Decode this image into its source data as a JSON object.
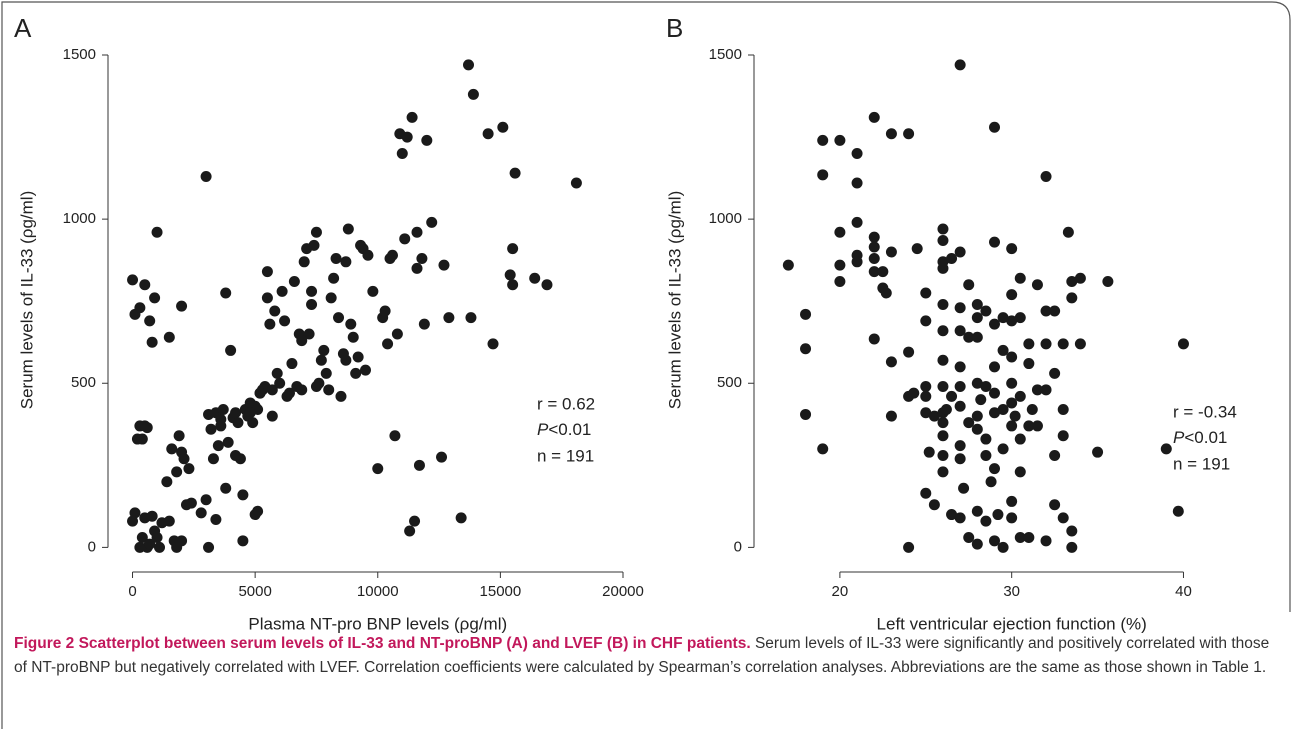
{
  "chart_data": [
    {
      "type": "scatter",
      "panel": "A",
      "xlabel": "Plasma NT-pro BNP levels (ρg/ml)",
      "ylabel": "Serum levels of IL-33 (ρg/ml)",
      "xlim": [
        -1000,
        20000
      ],
      "xticks": [
        0,
        5000,
        10000,
        15000,
        20000
      ],
      "ylim": [
        -75,
        1500
      ],
      "yticks": [
        0,
        500,
        1000,
        1500
      ],
      "color": "#1a1a1a",
      "annotations": {
        "r": "r = 0.62",
        "p_symbol": "P",
        "p_value": "<0.01",
        "n": "n = 191"
      },
      "x": [
        0,
        100,
        300,
        500,
        700,
        800,
        900,
        1000,
        1500,
        2000,
        0,
        100,
        200,
        300,
        400,
        500,
        600,
        300,
        400,
        500,
        600,
        700,
        800,
        900,
        1000,
        1100,
        1200,
        1400,
        1500,
        1600,
        1700,
        1800,
        1900,
        2000,
        1800,
        2000,
        2100,
        2200,
        2300,
        2400,
        2800,
        3000,
        3000,
        3100,
        3100,
        3200,
        3300,
        3400,
        3400,
        3500,
        3600,
        3700,
        3800,
        3800,
        3900,
        4000,
        4100,
        4200,
        4300,
        4400,
        4500,
        4500,
        4600,
        4700,
        4800,
        4900,
        5000,
        5100,
        5000,
        5100,
        5200,
        5300,
        5400,
        5500,
        5500,
        5600,
        5700,
        5800,
        5900,
        6000,
        6100,
        6200,
        6300,
        6400,
        6500,
        6600,
        6700,
        6800,
        6900,
        7000,
        7100,
        7200,
        7300,
        7400,
        7500,
        7500,
        7600,
        7700,
        7800,
        7900,
        8000,
        8100,
        8200,
        8300,
        8400,
        8500,
        8600,
        8700,
        8800,
        8900,
        9000,
        9100,
        9300,
        9400,
        9500,
        9600,
        9800,
        10000,
        10200,
        10300,
        10500,
        10600,
        10700,
        10800,
        10900,
        11000,
        11100,
        11200,
        11400,
        11600,
        11700,
        11800,
        11900,
        12000,
        12200,
        12600,
        12700,
        12900,
        11300,
        11500,
        13400,
        13700,
        13900,
        13800,
        14500,
        14700,
        15100,
        15400,
        15500,
        15500,
        15600,
        16400,
        16900,
        18100,
        10400,
        11600,
        7300,
        8700,
        9200,
        6900,
        5700,
        4800,
        4200,
        3600,
        5200
      ],
      "values": [
        815,
        710,
        730,
        800,
        690,
        625,
        760,
        960,
        640,
        735,
        80,
        105,
        330,
        370,
        330,
        370,
        365,
        0,
        30,
        90,
        0,
        10,
        95,
        50,
        30,
        0,
        75,
        200,
        80,
        300,
        20,
        230,
        340,
        290,
        0,
        20,
        270,
        130,
        240,
        135,
        105,
        1130,
        145,
        0,
        405,
        360,
        270,
        85,
        410,
        310,
        390,
        420,
        775,
        180,
        320,
        600,
        395,
        280,
        380,
        270,
        20,
        160,
        420,
        400,
        440,
        380,
        100,
        110,
        430,
        420,
        470,
        480,
        490,
        760,
        840,
        680,
        480,
        720,
        530,
        500,
        780,
        690,
        460,
        470,
        560,
        810,
        490,
        650,
        480,
        870,
        910,
        650,
        780,
        920,
        960,
        490,
        500,
        570,
        600,
        530,
        480,
        760,
        820,
        880,
        700,
        460,
        590,
        870,
        970,
        680,
        640,
        530,
        920,
        910,
        540,
        890,
        780,
        240,
        700,
        720,
        880,
        890,
        340,
        650,
        1260,
        1200,
        940,
        1250,
        1310,
        850,
        250,
        880,
        680,
        1240,
        990,
        275,
        860,
        700,
        50,
        80,
        90,
        1470,
        1380,
        700,
        1260,
        620,
        1280,
        830,
        800,
        910,
        1140,
        820,
        800,
        1110,
        620,
        960,
        740,
        570,
        580,
        630,
        400,
        410,
        410,
        370,
        470
      ]
    },
    {
      "type": "scatter",
      "panel": "B",
      "xlabel": "Left ventricular ejection function (%)",
      "ylabel": "Serum levels of IL-33 (ρg/ml)",
      "xlim": [
        15,
        43
      ],
      "xticks": [
        20,
        30,
        40
      ],
      "ylim": [
        -75,
        1500
      ],
      "yticks": [
        0,
        500,
        1000,
        1500
      ],
      "color": "#1a1a1a",
      "annotations": {
        "r": "r = -0.34",
        "p_symbol": "P",
        "p_value": "<0.01",
        "n": "n = 191"
      },
      "x": [
        17,
        18,
        18,
        18,
        19,
        19,
        19,
        20,
        20,
        20,
        20,
        21,
        21,
        21,
        21,
        21,
        22,
        22,
        22,
        22,
        22,
        22,
        22.5,
        22.5,
        22.7,
        23,
        23,
        23,
        23,
        24,
        24,
        24,
        24,
        24.5,
        25,
        25,
        25,
        25,
        25,
        25,
        25.5,
        25.5,
        26,
        26,
        26,
        26,
        26,
        26,
        26,
        26,
        26,
        26,
        26,
        26,
        26,
        26.5,
        26.5,
        26.5,
        27,
        27,
        27,
        27,
        27,
        27,
        27,
        27,
        27,
        27,
        27.5,
        27.5,
        27.5,
        27.5,
        28,
        28,
        28,
        28,
        28,
        28,
        28,
        28,
        28.5,
        28.5,
        28.5,
        28.5,
        28.5,
        29,
        29,
        29,
        29,
        29,
        29,
        29,
        29,
        29.5,
        29.5,
        29.5,
        29.5,
        29.5,
        30,
        30,
        30,
        30,
        30,
        30,
        30,
        30,
        30,
        30.5,
        30.5,
        30.5,
        30.5,
        30.5,
        30.5,
        31,
        31,
        31,
        31,
        31.5,
        31.5,
        31.5,
        32,
        32,
        32,
        32,
        32,
        32.5,
        32.5,
        32.5,
        32.5,
        33,
        33,
        33,
        33,
        33.3,
        33.5,
        33.5,
        33.5,
        33.5,
        34,
        34,
        35,
        35.6,
        39,
        39.7,
        40,
        26.2,
        28.8,
        29.2,
        30.2,
        31.2,
        24.3,
        25.2,
        27.2,
        28.2
      ],
      "values": [
        860,
        710,
        605,
        405,
        300,
        1240,
        1135,
        1240,
        960,
        860,
        810,
        1200,
        1110,
        990,
        890,
        870,
        1310,
        945,
        915,
        880,
        840,
        635,
        840,
        790,
        775,
        1260,
        900,
        565,
        400,
        1260,
        595,
        460,
        0,
        910,
        775,
        690,
        490,
        460,
        410,
        165,
        400,
        130,
        970,
        935,
        870,
        850,
        740,
        660,
        570,
        490,
        410,
        380,
        340,
        280,
        230,
        880,
        460,
        100,
        1470,
        900,
        730,
        660,
        550,
        490,
        430,
        310,
        270,
        90,
        800,
        640,
        380,
        30,
        740,
        700,
        640,
        500,
        400,
        360,
        110,
        10,
        720,
        490,
        330,
        280,
        80,
        1280,
        930,
        680,
        550,
        470,
        410,
        240,
        20,
        700,
        600,
        420,
        300,
        0,
        910,
        770,
        690,
        580,
        500,
        440,
        370,
        140,
        90,
        820,
        700,
        460,
        330,
        230,
        30,
        620,
        560,
        370,
        30,
        800,
        480,
        370,
        1130,
        720,
        620,
        480,
        20,
        720,
        530,
        280,
        130,
        620,
        420,
        340,
        90,
        960,
        810,
        760,
        50,
        0,
        820,
        620,
        290,
        810,
        300,
        110,
        620,
        420,
        200,
        100,
        400,
        420,
        470,
        290,
        180,
        450
      ]
    }
  ],
  "caption": {
    "bold": "Figure 2 Scatterplot between serum levels of IL-33 and NT-proBNP (A) and LVEF (B) in CHF patients.",
    "text": " Serum levels of IL-33 were significantly and positively correlated with those of NT-proBNP but negatively correlated with LVEF. Correlation coefficients were calculated by Spearman’s correlation analyses. Abbreviations are the same as those shown in Table 1."
  }
}
